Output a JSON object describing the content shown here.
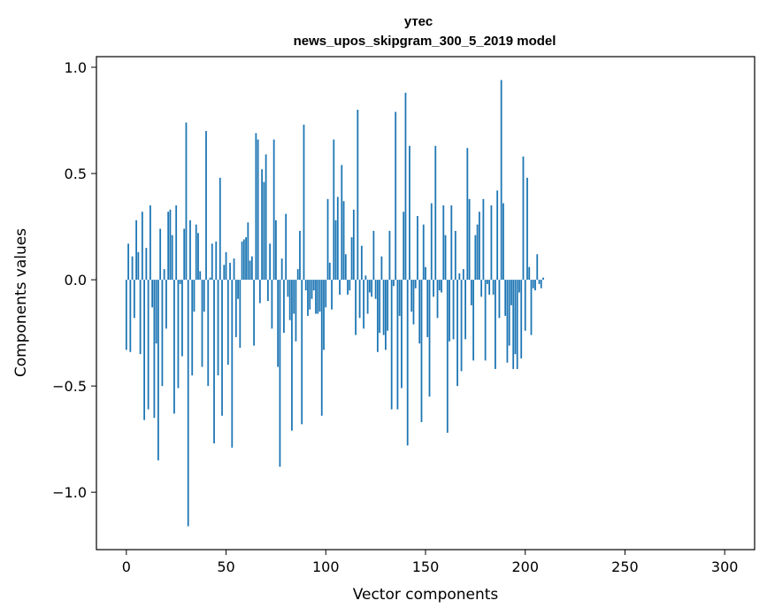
{
  "chart_data": {
    "type": "bar",
    "title_line1": "утес",
    "title_line2": "news_upos_skipgram_300_5_2019 model",
    "xlabel": "Vector components",
    "ylabel": "Components values",
    "xlim": [
      -15,
      315
    ],
    "ylim": [
      -1.27,
      1.05
    ],
    "xticks": [
      0,
      50,
      100,
      150,
      200,
      250,
      300
    ],
    "yticks": [
      -1.0,
      -0.5,
      0.0,
      0.5,
      1.0
    ],
    "ytick_labels": [
      "−1.0",
      "−0.5",
      "0.0",
      "0.5",
      "1.0"
    ],
    "bar_color": "#1f77b4",
    "values": [
      -0.33,
      0.17,
      -0.34,
      0.11,
      -0.18,
      0.28,
      0.13,
      -0.35,
      0.32,
      -0.66,
      0.15,
      -0.61,
      0.35,
      -0.13,
      -0.65,
      -0.3,
      -0.85,
      0.24,
      -0.5,
      0.05,
      -0.23,
      0.32,
      0.33,
      0.21,
      -0.63,
      0.35,
      -0.51,
      -0.02,
      -0.36,
      0.24,
      0.74,
      -1.16,
      0.28,
      -0.45,
      -0.15,
      0.26,
      0.22,
      0.04,
      -0.41,
      -0.15,
      0.7,
      -0.5,
      0.01,
      0.17,
      -0.77,
      0.18,
      -0.45,
      0.48,
      -0.64,
      0.07,
      0.13,
      -0.4,
      0.08,
      -0.79,
      0.1,
      -0.27,
      -0.09,
      -0.32,
      0.18,
      0.19,
      0.2,
      0.27,
      0.09,
      0.11,
      -0.31,
      0.69,
      0.66,
      -0.11,
      0.52,
      0.46,
      0.59,
      -0.1,
      0.17,
      -0.23,
      0.66,
      0.28,
      -0.41,
      -0.88,
      0.1,
      -0.25,
      0.31,
      -0.08,
      -0.19,
      -0.71,
      -0.16,
      -0.29,
      0.05,
      0.23,
      -0.68,
      0.73,
      -0.05,
      -0.17,
      -0.14,
      -0.09,
      -0.05,
      -0.16,
      -0.16,
      -0.15,
      -0.64,
      -0.33,
      -0.13,
      0.38,
      0.08,
      -0.14,
      0.66,
      0.28,
      0.39,
      -0.07,
      0.54,
      0.37,
      0.12,
      -0.07,
      -0.05,
      0.2,
      0.33,
      -0.26,
      0.8,
      -0.18,
      0.16,
      -0.23,
      0.02,
      -0.16,
      -0.06,
      -0.08,
      0.23,
      -0.09,
      -0.34,
      -0.25,
      0.11,
      -0.26,
      -0.33,
      -0.24,
      0.23,
      -0.61,
      -0.03,
      0.79,
      -0.61,
      -0.17,
      -0.51,
      0.32,
      0.88,
      -0.78,
      0.63,
      -0.15,
      -0.21,
      -0.04,
      0.3,
      -0.3,
      -0.67,
      0.26,
      0.06,
      -0.27,
      -0.55,
      0.36,
      -0.08,
      0.63,
      -0.18,
      -0.05,
      -0.06,
      0.35,
      0.21,
      -0.72,
      -0.29,
      0.35,
      -0.28,
      0.23,
      -0.5,
      0.03,
      -0.43,
      0.05,
      -0.28,
      0.62,
      0.38,
      -0.12,
      -0.38,
      0.21,
      0.26,
      0.32,
      -0.08,
      0.38,
      -0.38,
      -0.02,
      -0.07,
      0.35,
      -0.07,
      -0.42,
      0.42,
      -0.18,
      0.94,
      0.36,
      -0.17,
      -0.39,
      -0.31,
      -0.12,
      -0.42,
      -0.35,
      -0.42,
      -0.06,
      -0.37,
      0.58,
      -0.24,
      0.48,
      0.06,
      -0.26,
      -0.04,
      -0.05,
      0.12,
      -0.02,
      -0.04,
      0.01
    ]
  }
}
